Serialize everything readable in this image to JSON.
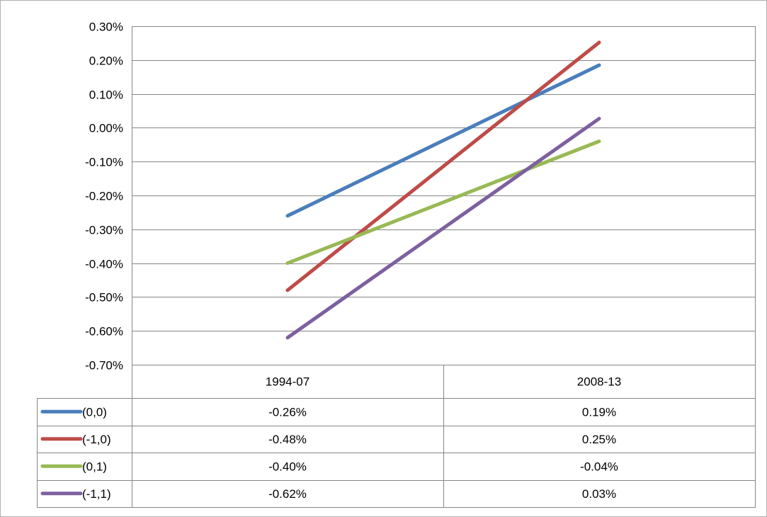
{
  "chart_data": {
    "type": "line",
    "title": "",
    "xlabel": "",
    "ylabel": "",
    "categories": [
      "1994-07",
      "2008-13"
    ],
    "ylim": [
      -0.7,
      0.3
    ],
    "y_ticks": [
      "0.30%",
      "0.20%",
      "0.10%",
      "0.00%",
      "-0.10%",
      "-0.20%",
      "-0.30%",
      "-0.40%",
      "-0.50%",
      "-0.60%",
      "-0.70%"
    ],
    "grid": true,
    "legend": "data-table-below",
    "series": [
      {
        "name": "(0,0)",
        "color": "#4a7ebb",
        "values": [
          -0.26,
          0.185
        ],
        "labels": [
          "-0.26%",
          "0.19%"
        ]
      },
      {
        "name": "(-1,0)",
        "color": "#be4b48",
        "values": [
          -0.48,
          0.252
        ],
        "labels": [
          "-0.48%",
          "0.25%"
        ]
      },
      {
        "name": "(0,1)",
        "color": "#98b954",
        "values": [
          -0.4,
          -0.04
        ],
        "labels": [
          "-0.40%",
          "-0.04%"
        ]
      },
      {
        "name": "(-1,1)",
        "color": "#7d60a0",
        "values": [
          -0.62,
          0.027
        ],
        "labels": [
          "-0.62%",
          "0.03%"
        ]
      }
    ]
  }
}
